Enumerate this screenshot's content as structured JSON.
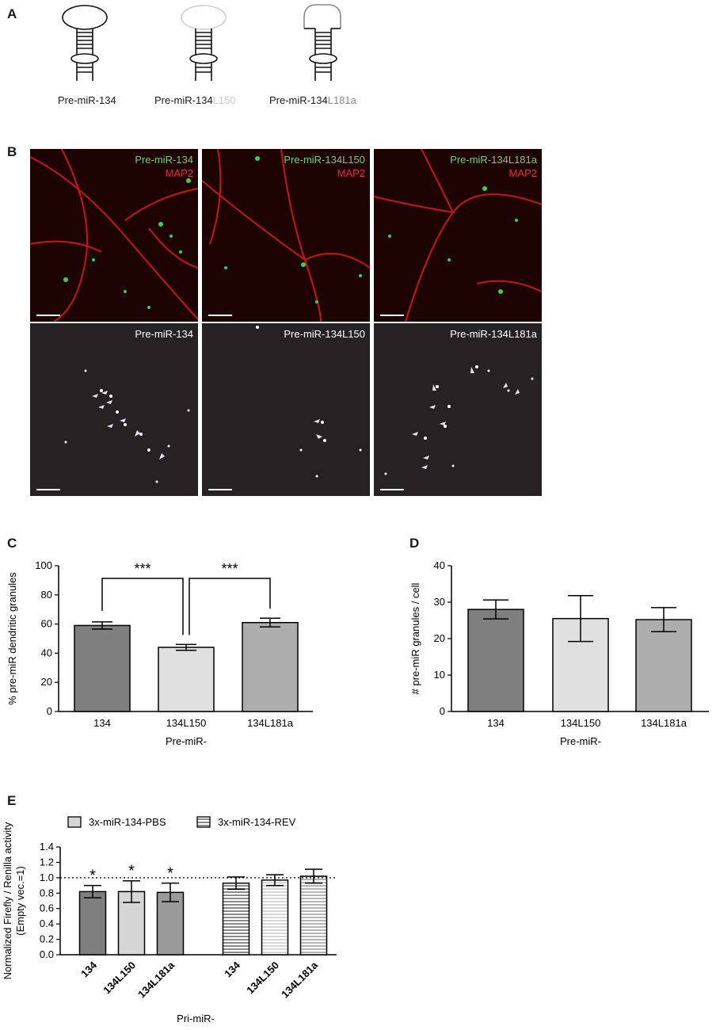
{
  "panel_labels": {
    "a": "A",
    "b": "B",
    "c": "C",
    "d": "D",
    "e": "E"
  },
  "panel_a": {
    "structure_1": "Pre-miR-134",
    "structure_2_prefix": "Pre-miR-134",
    "structure_2_suffix": "L150",
    "structure_3_prefix": "Pre-miR-134",
    "structure_3_suffix": "L181a"
  },
  "panel_b": {
    "top_row": [
      {
        "construct": "Pre-miR-134",
        "stain": "MAP2"
      },
      {
        "construct": "Pre-miR-134L150",
        "stain": "MAP2"
      },
      {
        "construct": "Pre-miR-134L181a",
        "stain": "MAP2"
      }
    ],
    "bottom_row": [
      "Pre-miR-134",
      "Pre-miR-134L150",
      "Pre-miR-134L181a"
    ],
    "colors": {
      "construct_label": "#7fd05a",
      "stain_label": "#e83030",
      "dendrite": "#d81818",
      "granule": "#3ed13e"
    }
  },
  "chart_data": [
    {
      "id": "C",
      "type": "bar",
      "categories": [
        "134",
        "134L150",
        "134L181a"
      ],
      "values": [
        59,
        44,
        61
      ],
      "errors": [
        2.5,
        2,
        3
      ],
      "colors": [
        "#7f7f7f",
        "#e0e0e0",
        "#adadad"
      ],
      "xlabel": "Pre-miR-",
      "ylabel": "% pre-miR dendritic granules",
      "ylim": [
        0,
        100
      ],
      "yticks": [
        0,
        20,
        40,
        60,
        80,
        100
      ],
      "significance": [
        {
          "from": "134",
          "to": "134L150",
          "label": "***"
        },
        {
          "from": "134L150",
          "to": "134L181a",
          "label": "***"
        }
      ]
    },
    {
      "id": "D",
      "type": "bar",
      "categories": [
        "134",
        "134L150",
        "134L181a"
      ],
      "values": [
        28,
        25.5,
        25.2
      ],
      "errors": [
        2.6,
        6.3,
        3.3
      ],
      "colors": [
        "#7f7f7f",
        "#e0e0e0",
        "#adadad"
      ],
      "xlabel": "Pre-miR-",
      "ylabel": "# pre-miR granules / cell",
      "ylim": [
        0,
        40
      ],
      "yticks": [
        0,
        10,
        20,
        30,
        40
      ]
    },
    {
      "id": "E",
      "type": "bar",
      "legend": [
        "3x-miR-134-PBS",
        "3x-miR-134-REV"
      ],
      "legend_position": "top",
      "categories": [
        "134",
        "134L150",
        "134L181a",
        "134",
        "134L150",
        "134L181a"
      ],
      "groups": [
        "3x-miR-134-PBS",
        "3x-miR-134-PBS",
        "3x-miR-134-PBS",
        "3x-miR-134-REV",
        "3x-miR-134-REV",
        "3x-miR-134-REV"
      ],
      "values": [
        0.82,
        0.82,
        0.81,
        0.93,
        0.97,
        1.02
      ],
      "errors": [
        0.08,
        0.14,
        0.12,
        0.08,
        0.07,
        0.09
      ],
      "colors": [
        "#7f7f7f",
        "#d6d6d6",
        "#9a9a9a",
        "#8a8a8a",
        "#d6d6d6",
        "#b4b4b4"
      ],
      "annotations": [
        "*",
        "*",
        "*",
        "",
        "",
        ""
      ],
      "reference_line": 1.0,
      "xlabel": "Pri-miR-",
      "ylabel": "Normalized Firefly / Renilla activity",
      "ylabel2": "(Empty vec.=1)",
      "ylim": [
        0,
        1.4
      ],
      "yticks": [
        "0.0",
        "0.2",
        "0.4",
        "0.6",
        "0.8",
        "1.0",
        "1.2",
        "1.4"
      ]
    }
  ]
}
